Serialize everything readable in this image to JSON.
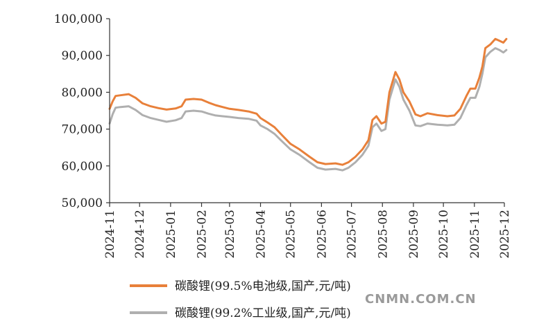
{
  "chart_data": {
    "type": "line",
    "title": "",
    "xlabel": "",
    "ylabel": "",
    "ylim": [
      50000,
      100000
    ],
    "yticks": [
      "50,000",
      "60,000",
      "70,000",
      "80,000",
      "90,000",
      "100,000"
    ],
    "ytick_values": [
      50000,
      60000,
      70000,
      80000,
      90000,
      100000
    ],
    "categories": [
      "2024-11",
      "2024-12",
      "2025-01",
      "2025-02",
      "2025-03",
      "2025-04",
      "2025-05",
      "2025-06",
      "2025-07",
      "2025-08",
      "2025-09",
      "2025-10",
      "2025-11",
      "2025-12"
    ],
    "grid": false,
    "legend_position": "bottom",
    "series": [
      {
        "name": "碳酸锂(99.5%电池级,国产,元/吨)",
        "color": "#E8803A",
        "points": [
          [
            "2024-11-01",
            75500
          ],
          [
            "2024-11-04",
            77500
          ],
          [
            "2024-11-07",
            79000
          ],
          [
            "2024-11-12",
            79200
          ],
          [
            "2024-11-20",
            79500
          ],
          [
            "2024-11-27",
            78500
          ],
          [
            "2024-12-04",
            77000
          ],
          [
            "2024-12-12",
            76200
          ],
          [
            "2024-12-20",
            75700
          ],
          [
            "2024-12-28",
            75300
          ],
          [
            "2025-01-06",
            75600
          ],
          [
            "2025-01-12",
            76200
          ],
          [
            "2025-01-16",
            78000
          ],
          [
            "2025-01-24",
            78200
          ],
          [
            "2025-02-01",
            78000
          ],
          [
            "2025-02-08",
            77200
          ],
          [
            "2025-02-15",
            76500
          ],
          [
            "2025-02-22",
            76000
          ],
          [
            "2025-03-01",
            75500
          ],
          [
            "2025-03-10",
            75200
          ],
          [
            "2025-03-20",
            74800
          ],
          [
            "2025-03-28",
            74200
          ],
          [
            "2025-04-01",
            73000
          ],
          [
            "2025-04-08",
            71800
          ],
          [
            "2025-04-15",
            70500
          ],
          [
            "2025-04-22",
            68500
          ],
          [
            "2025-05-01",
            66000
          ],
          [
            "2025-05-10",
            64500
          ],
          [
            "2025-05-20",
            62500
          ],
          [
            "2025-05-28",
            61000
          ],
          [
            "2025-06-05",
            60500
          ],
          [
            "2025-06-15",
            60700
          ],
          [
            "2025-06-22",
            60300
          ],
          [
            "2025-06-28",
            61000
          ],
          [
            "2025-07-05",
            62500
          ],
          [
            "2025-07-12",
            64500
          ],
          [
            "2025-07-18",
            67000
          ],
          [
            "2025-07-22",
            72500
          ],
          [
            "2025-07-26",
            73500
          ],
          [
            "2025-07-31",
            71500
          ],
          [
            "2025-08-04",
            72000
          ],
          [
            "2025-08-08",
            80000
          ],
          [
            "2025-08-14",
            85500
          ],
          [
            "2025-08-18",
            83500
          ],
          [
            "2025-08-22",
            80000
          ],
          [
            "2025-08-28",
            77500
          ],
          [
            "2025-09-03",
            74000
          ],
          [
            "2025-09-08",
            73500
          ],
          [
            "2025-09-15",
            74300
          ],
          [
            "2025-09-25",
            73800
          ],
          [
            "2025-10-05",
            73500
          ],
          [
            "2025-10-12",
            73700
          ],
          [
            "2025-10-18",
            75500
          ],
          [
            "2025-10-24",
            79000
          ],
          [
            "2025-10-28",
            81000
          ],
          [
            "2025-11-02",
            81000
          ],
          [
            "2025-11-06",
            84000
          ],
          [
            "2025-11-09",
            87000
          ],
          [
            "2025-11-12",
            92000
          ],
          [
            "2025-11-17",
            93000
          ],
          [
            "2025-11-22",
            94500
          ],
          [
            "2025-11-26",
            94000
          ],
          [
            "2025-11-30",
            93500
          ],
          [
            "2025-12-03",
            94500
          ]
        ]
      },
      {
        "name": "碳酸锂(99.2%工业级,国产,元/吨)",
        "color": "#AFAFAF",
        "points": [
          [
            "2024-11-01",
            71500
          ],
          [
            "2024-11-04",
            74000
          ],
          [
            "2024-11-07",
            75800
          ],
          [
            "2024-11-12",
            76000
          ],
          [
            "2024-11-20",
            76200
          ],
          [
            "2024-11-27",
            75200
          ],
          [
            "2024-12-04",
            73800
          ],
          [
            "2024-12-12",
            73000
          ],
          [
            "2024-12-20",
            72500
          ],
          [
            "2024-12-28",
            72000
          ],
          [
            "2025-01-06",
            72400
          ],
          [
            "2025-01-12",
            73000
          ],
          [
            "2025-01-16",
            74800
          ],
          [
            "2025-01-24",
            75000
          ],
          [
            "2025-02-01",
            74800
          ],
          [
            "2025-02-08",
            74200
          ],
          [
            "2025-02-15",
            73700
          ],
          [
            "2025-02-22",
            73500
          ],
          [
            "2025-03-01",
            73300
          ],
          [
            "2025-03-10",
            73000
          ],
          [
            "2025-03-20",
            72800
          ],
          [
            "2025-03-28",
            72300
          ],
          [
            "2025-04-01",
            71000
          ],
          [
            "2025-04-08",
            70000
          ],
          [
            "2025-04-15",
            68700
          ],
          [
            "2025-04-22",
            66800
          ],
          [
            "2025-05-01",
            64500
          ],
          [
            "2025-05-10",
            63000
          ],
          [
            "2025-05-20",
            61000
          ],
          [
            "2025-05-28",
            59500
          ],
          [
            "2025-06-05",
            59000
          ],
          [
            "2025-06-15",
            59200
          ],
          [
            "2025-06-22",
            58800
          ],
          [
            "2025-06-28",
            59500
          ],
          [
            "2025-07-05",
            61000
          ],
          [
            "2025-07-12",
            63000
          ],
          [
            "2025-07-18",
            65500
          ],
          [
            "2025-07-22",
            70500
          ],
          [
            "2025-07-26",
            71500
          ],
          [
            "2025-07-31",
            69500
          ],
          [
            "2025-08-04",
            70000
          ],
          [
            "2025-08-08",
            78000
          ],
          [
            "2025-08-14",
            83500
          ],
          [
            "2025-08-18",
            81500
          ],
          [
            "2025-08-22",
            78000
          ],
          [
            "2025-08-28",
            75000
          ],
          [
            "2025-09-03",
            71000
          ],
          [
            "2025-09-08",
            70800
          ],
          [
            "2025-09-15",
            71500
          ],
          [
            "2025-09-25",
            71200
          ],
          [
            "2025-10-05",
            71000
          ],
          [
            "2025-10-12",
            71200
          ],
          [
            "2025-10-18",
            73000
          ],
          [
            "2025-10-24",
            76500
          ],
          [
            "2025-10-28",
            78500
          ],
          [
            "2025-11-02",
            78500
          ],
          [
            "2025-11-06",
            81500
          ],
          [
            "2025-11-09",
            85000
          ],
          [
            "2025-11-12",
            89500
          ],
          [
            "2025-11-17",
            91000
          ],
          [
            "2025-11-22",
            92000
          ],
          [
            "2025-11-26",
            91500
          ],
          [
            "2025-11-30",
            90800
          ],
          [
            "2025-12-03",
            91500
          ]
        ]
      }
    ]
  },
  "watermark": "CNMN.COM.CN"
}
